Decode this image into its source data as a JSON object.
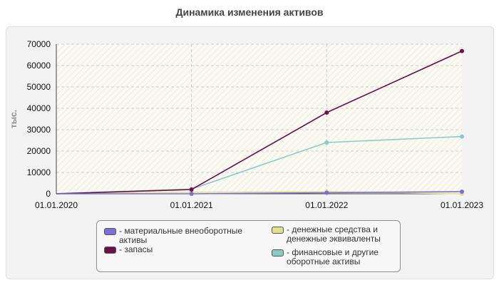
{
  "chart_data": {
    "type": "line",
    "title": "Динамика изменения активов",
    "ylabel": "тыс.",
    "xlabel": "",
    "categories": [
      "01.01.2020",
      "01.01.2021",
      "01.01.2022",
      "01.01.2023"
    ],
    "ylim": [
      0,
      70000
    ],
    "yticks": [
      0,
      10000,
      20000,
      30000,
      40000,
      50000,
      60000,
      70000
    ],
    "grid": true,
    "legend_position": "bottom",
    "series": [
      {
        "name": "- материальные внеоборотные\nактивы",
        "color": "#7b6fd6",
        "values": [
          0,
          0,
          500,
          1000
        ]
      },
      {
        "name": "- запасы",
        "color": "#6b1149",
        "values": [
          0,
          2000,
          38000,
          66800
        ]
      },
      {
        "name": "- денежные средства и\nденежные эквиваленты",
        "color": "#e3e08c",
        "values": [
          0,
          700,
          1000,
          0
        ]
      },
      {
        "name": "- финансовые и другие\nоборотные активы",
        "color": "#8ccbc4",
        "values": [
          100,
          2200,
          24000,
          26800
        ]
      }
    ]
  }
}
